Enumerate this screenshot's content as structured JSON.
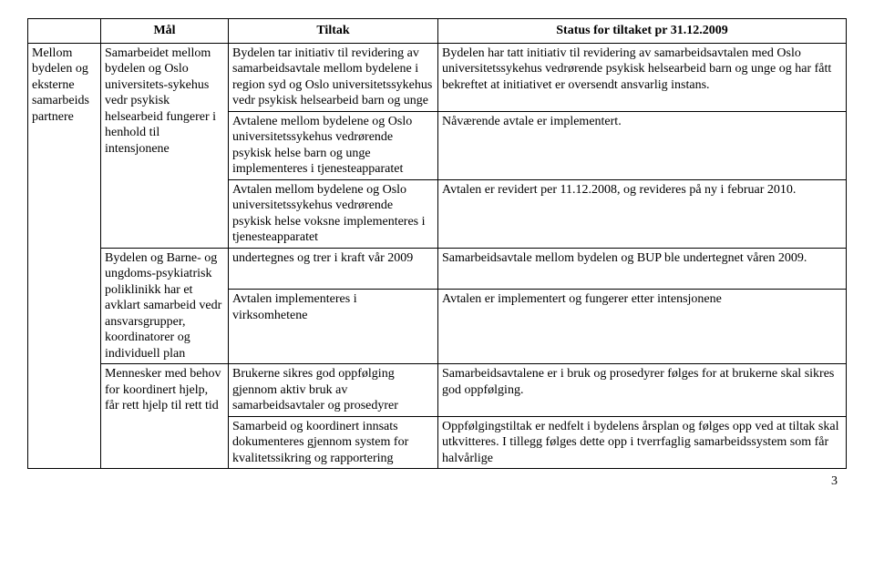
{
  "header": {
    "col1": "",
    "col2": "Mål",
    "col3": "Tiltak",
    "col4": "Status for tiltaket pr 31.12.2009"
  },
  "rows": [
    {
      "c1": "Mellom bydelen og eksterne samarbeids partnere",
      "c1_rowspan": 8,
      "c2": "Samarbeidet mellom bydelen og Oslo universitets-sykehus vedr psykisk helsearbeid fungerer i henhold til intensjonene",
      "c2_rowspan": 3,
      "c3": "Bydelen tar initiativ til revidering av samarbeidsavtale mellom bydelene i region syd og Oslo universitetssykehus vedr psykisk helsearbeid barn og unge",
      "c4": "Bydelen har tatt initiativ til revidering av samarbeidsavtalen med Oslo universitetssykehus vedrørende psykisk helsearbeid barn og unge og har fått bekreftet at initiativet er oversendt ansvarlig instans."
    },
    {
      "c3": "Avtalene mellom bydelene og Oslo universitetssykehus vedrørende psykisk helse barn og unge implementeres i tjenesteapparatet",
      "c4": "Nåværende avtale er implementert."
    },
    {
      "c3": "Avtalen mellom bydelene og Oslo universitetssykehus vedrørende psykisk helse voksne implementeres i tjenesteapparatet",
      "c4": "Avtalen er revidert per 11.12.2008, og revideres på ny i februar 2010."
    },
    {
      "c2": "Bydelen og Barne- og ungdoms-psykiatrisk poliklinikk har et avklart samarbeid vedr ansvarsgrupper, koordinatorer og individuell plan",
      "c2_rowspan": 2,
      "c3": "undertegnes og trer i kraft vår 2009",
      "c4": "Samarbeidsavtale mellom bydelen og BUP ble undertegnet våren 2009."
    },
    {
      "c3": "Avtalen implementeres i virksomhetene",
      "c4": "Avtalen er implementert og fungerer etter intensjonene"
    },
    {
      "c2": "Mennesker med behov for koordinert hjelp, får rett hjelp til rett tid",
      "c2_rowspan": 2,
      "c3": "Brukerne sikres god oppfølging gjennom aktiv bruk av samarbeidsavtaler og prosedyrer",
      "c4": "Samarbeidsavtalene er i bruk og prosedyrer følges for at brukerne skal sikres god oppfølging."
    },
    {
      "c3": "Samarbeid og koordinert innsats dokumenteres gjennom system for kvalitetssikring og rapportering",
      "c4": "Oppfølgingstiltak er nedfelt i bydelens årsplan og følges opp ved at tiltak skal utkvitteres.\nI tillegg følges dette opp i tverrfaglig samarbeidssystem som får halvårlige"
    }
  ],
  "page_number": "3"
}
